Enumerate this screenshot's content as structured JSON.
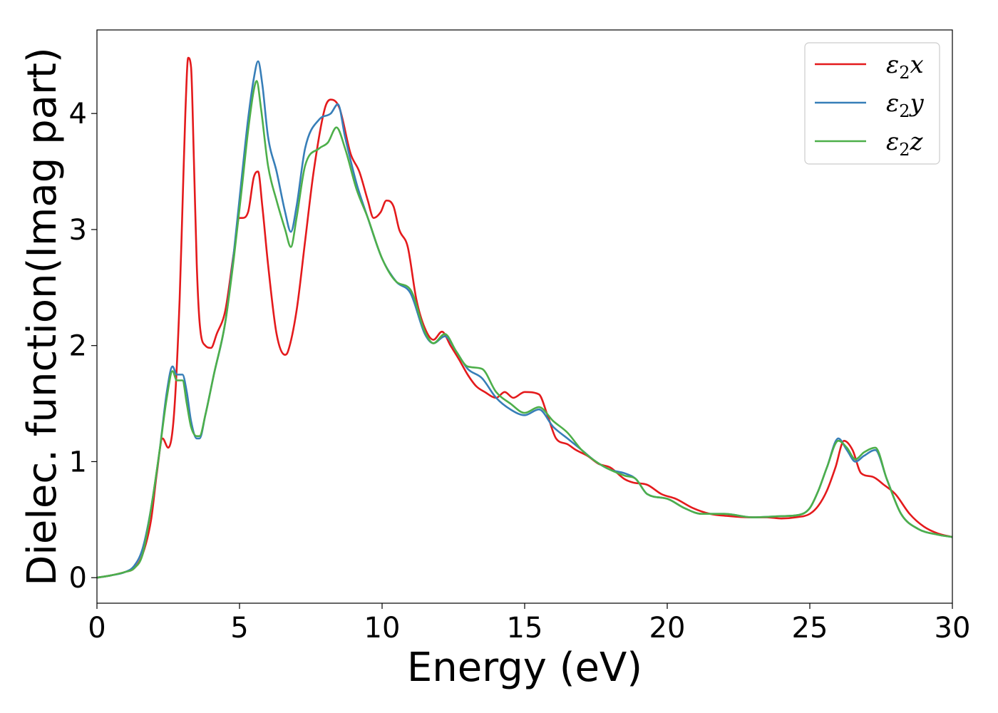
{
  "chart_data": {
    "type": "line",
    "xlabel": "Energy (eV)",
    "ylabel": "Dielec. function(Imag part)",
    "xlim": [
      0,
      30
    ],
    "ylim": [
      -0.22,
      4.72
    ],
    "xticks": [
      0,
      5,
      10,
      15,
      20,
      25,
      30
    ],
    "yticks": [
      0,
      1,
      2,
      3,
      4
    ],
    "grid": false,
    "legend_position": "top-right",
    "series": [
      {
        "name": "ε₂x",
        "legend_base": "ε",
        "legend_sub": "2",
        "legend_suffix": "x",
        "color": "#e41a1c",
        "x": [
          0,
          0.5,
          1.0,
          1.3,
          1.6,
          1.9,
          2.1,
          2.3,
          2.5,
          2.7,
          2.9,
          3.0,
          3.1,
          3.2,
          3.3,
          3.4,
          3.5,
          3.6,
          3.8,
          4.0,
          4.2,
          4.5,
          4.8,
          5.0,
          5.1,
          5.3,
          5.5,
          5.65,
          5.8,
          6.0,
          6.3,
          6.6,
          6.7,
          7.0,
          7.3,
          7.6,
          8.0,
          8.2,
          8.5,
          8.9,
          9.2,
          9.5,
          9.7,
          9.95,
          10.15,
          10.4,
          10.6,
          10.9,
          11.2,
          11.5,
          11.8,
          12.1,
          12.4,
          12.7,
          13.0,
          13.3,
          13.6,
          14.0,
          14.3,
          14.6,
          15.0,
          15.5,
          15.8,
          16.1,
          16.5,
          16.8,
          17.2,
          17.6,
          18.0,
          18.5,
          18.8,
          19.3,
          19.8,
          20.3,
          20.9,
          21.5,
          22.2,
          22.9,
          23.5,
          24.0,
          24.5,
          25.0,
          25.3,
          25.6,
          25.9,
          26.2,
          26.5,
          26.8,
          27.2,
          27.6,
          28.0,
          28.5,
          29.0,
          29.5,
          30.0
        ],
        "y": [
          0,
          0.02,
          0.05,
          0.08,
          0.2,
          0.5,
          0.9,
          1.2,
          1.12,
          1.4,
          2.4,
          3.2,
          4.0,
          4.48,
          4.4,
          3.6,
          2.7,
          2.2,
          2.0,
          1.98,
          2.1,
          2.3,
          2.8,
          3.1,
          3.1,
          3.15,
          3.45,
          3.5,
          3.2,
          2.7,
          2.1,
          1.92,
          1.95,
          2.3,
          2.9,
          3.5,
          4.05,
          4.12,
          4.05,
          3.65,
          3.5,
          3.25,
          3.1,
          3.15,
          3.25,
          3.2,
          3.0,
          2.85,
          2.4,
          2.15,
          2.05,
          2.12,
          2.0,
          1.88,
          1.75,
          1.65,
          1.6,
          1.55,
          1.6,
          1.55,
          1.6,
          1.58,
          1.4,
          1.2,
          1.15,
          1.1,
          1.05,
          0.98,
          0.95,
          0.85,
          0.82,
          0.8,
          0.72,
          0.68,
          0.6,
          0.55,
          0.53,
          0.52,
          0.52,
          0.51,
          0.52,
          0.55,
          0.62,
          0.75,
          0.95,
          1.18,
          1.1,
          0.9,
          0.87,
          0.8,
          0.72,
          0.55,
          0.44,
          0.38,
          0.35
        ]
      },
      {
        "name": "ε₂y",
        "legend_base": "ε",
        "legend_sub": "2",
        "legend_suffix": "y",
        "color": "#377eb8",
        "x": [
          0,
          0.5,
          1.0,
          1.3,
          1.6,
          1.9,
          2.2,
          2.45,
          2.65,
          2.8,
          3.0,
          3.15,
          3.3,
          3.5,
          3.6,
          3.8,
          4.1,
          4.5,
          4.8,
          5.1,
          5.3,
          5.5,
          5.65,
          5.8,
          6.0,
          6.3,
          6.6,
          6.8,
          7.0,
          7.3,
          7.8,
          8.2,
          8.45,
          8.7,
          9.1,
          9.5,
          10.0,
          10.5,
          11.0,
          11.5,
          11.8,
          12.2,
          12.6,
          13.0,
          13.5,
          14.0,
          14.5,
          15.0,
          15.5,
          16.0,
          16.5,
          17.0,
          17.5,
          18.0,
          18.5,
          18.9,
          19.3,
          20.0,
          20.6,
          21.2,
          22.0,
          23.0,
          24.0,
          24.6,
          25.0,
          25.3,
          25.6,
          26.0,
          26.3,
          26.6,
          26.9,
          27.3,
          27.7,
          28.2,
          28.8,
          29.5,
          30.0
        ],
        "y": [
          0,
          0.02,
          0.05,
          0.1,
          0.25,
          0.6,
          1.1,
          1.6,
          1.82,
          1.75,
          1.75,
          1.6,
          1.35,
          1.2,
          1.2,
          1.4,
          1.75,
          2.2,
          2.8,
          3.5,
          3.95,
          4.3,
          4.45,
          4.25,
          3.8,
          3.5,
          3.15,
          2.98,
          3.2,
          3.7,
          3.95,
          4.0,
          4.08,
          3.8,
          3.4,
          3.1,
          2.75,
          2.55,
          2.45,
          2.1,
          2.02,
          2.08,
          1.95,
          1.8,
          1.72,
          1.55,
          1.45,
          1.4,
          1.45,
          1.3,
          1.2,
          1.1,
          1.0,
          0.93,
          0.9,
          0.85,
          0.72,
          0.68,
          0.6,
          0.55,
          0.55,
          0.52,
          0.53,
          0.54,
          0.6,
          0.75,
          0.95,
          1.2,
          1.1,
          1.0,
          1.05,
          1.1,
          0.85,
          0.55,
          0.42,
          0.37,
          0.35
        ]
      },
      {
        "name": "ε₂z",
        "legend_base": "ε",
        "legend_sub": "2",
        "legend_suffix": "z",
        "color": "#4daf4a",
        "x": [
          0,
          0.5,
          1.0,
          1.3,
          1.6,
          1.9,
          2.2,
          2.45,
          2.65,
          2.8,
          3.0,
          3.15,
          3.3,
          3.5,
          3.6,
          3.8,
          4.1,
          4.5,
          4.8,
          5.1,
          5.3,
          5.5,
          5.6,
          5.75,
          6.0,
          6.3,
          6.6,
          6.8,
          7.0,
          7.3,
          7.8,
          8.1,
          8.4,
          8.7,
          9.1,
          9.5,
          10.0,
          10.5,
          11.0,
          11.5,
          11.8,
          12.2,
          12.6,
          13.0,
          13.5,
          14.0,
          14.5,
          15.0,
          15.5,
          16.0,
          16.5,
          17.0,
          17.5,
          18.0,
          18.5,
          18.9,
          19.3,
          20.0,
          20.6,
          21.2,
          22.0,
          23.0,
          24.0,
          24.6,
          25.0,
          25.3,
          25.6,
          26.0,
          26.3,
          26.6,
          26.9,
          27.3,
          27.7,
          28.2,
          28.8,
          29.5,
          30.0
        ],
        "y": [
          0,
          0.02,
          0.05,
          0.08,
          0.2,
          0.6,
          1.1,
          1.55,
          1.78,
          1.7,
          1.7,
          1.5,
          1.3,
          1.22,
          1.22,
          1.4,
          1.75,
          2.2,
          2.75,
          3.4,
          3.85,
          4.2,
          4.28,
          4.05,
          3.55,
          3.25,
          3.0,
          2.85,
          3.1,
          3.55,
          3.7,
          3.75,
          3.88,
          3.7,
          3.35,
          3.1,
          2.75,
          2.55,
          2.48,
          2.12,
          2.02,
          2.1,
          1.95,
          1.82,
          1.8,
          1.6,
          1.5,
          1.42,
          1.47,
          1.35,
          1.25,
          1.1,
          1.0,
          0.93,
          0.88,
          0.85,
          0.72,
          0.68,
          0.6,
          0.55,
          0.55,
          0.52,
          0.53,
          0.54,
          0.6,
          0.75,
          0.95,
          1.18,
          1.12,
          1.02,
          1.08,
          1.12,
          0.85,
          0.55,
          0.42,
          0.37,
          0.35
        ]
      }
    ]
  }
}
